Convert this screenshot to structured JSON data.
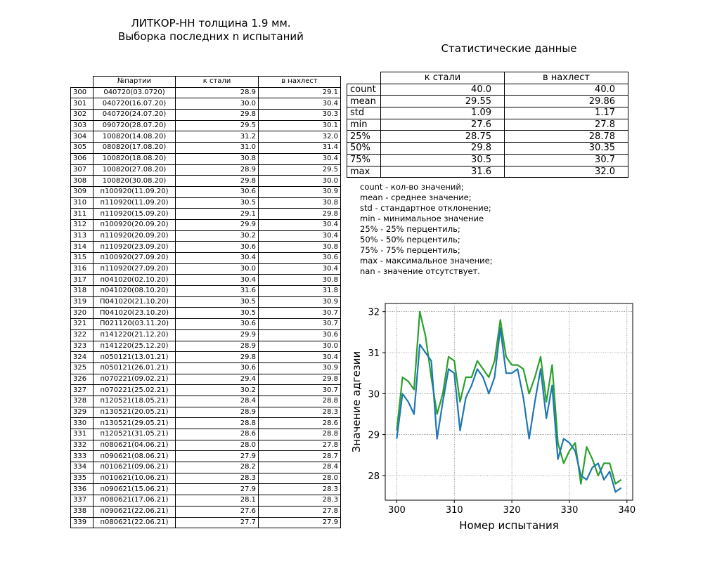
{
  "left_title": {
    "line1": "ЛИТКОР-НН толщина 1.9 мм.",
    "line2": "Выборка последних n испытаний"
  },
  "table": {
    "headers": [
      "№партии",
      "к стали",
      "в нахлест"
    ],
    "rows": [
      [
        "300",
        "040720(03.0720)",
        "28.9",
        "29.1"
      ],
      [
        "301",
        "040720(16.07.20)",
        "30.0",
        "30.4"
      ],
      [
        "302",
        "040720(24.07.20)",
        "29.8",
        "30.3"
      ],
      [
        "303",
        "090720(28.07.20)",
        "29.5",
        "30.1"
      ],
      [
        "304",
        "100820(14.08.20)",
        "31.2",
        "32.0"
      ],
      [
        "305",
        "080820(17.08.20)",
        "31.0",
        "31.4"
      ],
      [
        "306",
        "100820(18.08.20)",
        "30.8",
        "30.4"
      ],
      [
        "307",
        "100820(27.08.20)",
        "28.9",
        "29.5"
      ],
      [
        "308",
        "100820(30.08.20)",
        "29.8",
        "30.0"
      ],
      [
        "309",
        "п100920(11.09.20)",
        "30.6",
        "30.9"
      ],
      [
        "310",
        "п110920(11.09.20)",
        "30.5",
        "30.8"
      ],
      [
        "311",
        "п110920(15.09.20)",
        "29.1",
        "29.8"
      ],
      [
        "312",
        "п100920(20.09.20)",
        "29.9",
        "30.4"
      ],
      [
        "313",
        "п110920(20.09.20)",
        "30.2",
        "30.4"
      ],
      [
        "314",
        "п110920(23.09.20)",
        "30.6",
        "30.8"
      ],
      [
        "315",
        "п100920(27.09.20)",
        "30.4",
        "30.6"
      ],
      [
        "316",
        "п110920(27.09.20)",
        "30.0",
        "30.4"
      ],
      [
        "317",
        "п041020(02.10.20)",
        "30.4",
        "30.8"
      ],
      [
        "318",
        "п041020(08.10.20)",
        "31.6",
        "31.8"
      ],
      [
        "319",
        "П041020(21.10.20)",
        "30.5",
        "30.9"
      ],
      [
        "320",
        "П041020(23.10.20)",
        "30.5",
        "30.7"
      ],
      [
        "321",
        "П021120(03.11.20)",
        "30.6",
        "30.7"
      ],
      [
        "322",
        "п141220(21.12.20)",
        "29.9",
        "30.6"
      ],
      [
        "323",
        "п141220(25.12.20)",
        "28.9",
        "30.0"
      ],
      [
        "324",
        "п050121(13.01.21)",
        "29.8",
        "30.4"
      ],
      [
        "325",
        "п050121(26.01.21)",
        "30.6",
        "30.9"
      ],
      [
        "326",
        "п070221(09.02.21)",
        "29.4",
        "29.8"
      ],
      [
        "327",
        "п070221(25.02.21)",
        "30.2",
        "30.7"
      ],
      [
        "328",
        "п120521(18.05.21)",
        "28.4",
        "28.8"
      ],
      [
        "329",
        "п130521(20.05.21)",
        "28.9",
        "28.3"
      ],
      [
        "330",
        "п130521(29.05.21)",
        "28.8",
        "28.6"
      ],
      [
        "331",
        "п120521(31.05.21)",
        "28.6",
        "28.8"
      ],
      [
        "332",
        "п080621(04.06.21)",
        "28.0",
        "27.8"
      ],
      [
        "333",
        "п090621(08.06.21)",
        "27.9",
        "28.7"
      ],
      [
        "334",
        "п010621(09.06.21)",
        "28.2",
        "28.4"
      ],
      [
        "335",
        "п010621(10.06.21)",
        "28.3",
        "28.0"
      ],
      [
        "336",
        "п090621(15.06.21)",
        "27.9",
        "28.3"
      ],
      [
        "337",
        "п080621(17.06.21)",
        "28.1",
        "28.3"
      ],
      [
        "338",
        "п090621(22.06.21)",
        "27.6",
        "27.8"
      ],
      [
        "339",
        "п080621(22.06.21)",
        "27.7",
        "27.9"
      ]
    ]
  },
  "stats": {
    "title": "Статистические данные",
    "headers": [
      "к стали",
      "в нахлест"
    ],
    "rows": [
      [
        "count",
        "40.0",
        "40.0"
      ],
      [
        "mean",
        "29.55",
        "29.86"
      ],
      [
        "std",
        "1.09",
        "1.17"
      ],
      [
        "min",
        "27.6",
        "27.8"
      ],
      [
        "25%",
        "28.75",
        "28.78"
      ],
      [
        "50%",
        "29.8",
        "30.35"
      ],
      [
        "75%",
        "30.5",
        "30.7"
      ],
      [
        "max",
        "31.6",
        "32.0"
      ]
    ]
  },
  "notes": [
    "count - кол-во значений;",
    "mean - среднее значение;",
    "std - стандартное отклонение;",
    "min - минимальное значение",
    "25% - 25% перцентиль;",
    "50% - 50% перцентиль;",
    "75% - 75% перцентиль;",
    "max - максимальное значение;",
    "nan - значение отсутствует."
  ],
  "chart_data": {
    "type": "line",
    "title": "",
    "xlabel": "Номер испытания",
    "ylabel": "Значение адгезии",
    "xlim": [
      298,
      341
    ],
    "ylim": [
      27.4,
      32.2
    ],
    "xticks": [
      300,
      310,
      320,
      330,
      340
    ],
    "yticks": [
      28,
      29,
      30,
      31,
      32
    ],
    "grid": true,
    "x": [
      300,
      301,
      302,
      303,
      304,
      305,
      306,
      307,
      308,
      309,
      310,
      311,
      312,
      313,
      314,
      315,
      316,
      317,
      318,
      319,
      320,
      321,
      322,
      323,
      324,
      325,
      326,
      327,
      328,
      329,
      330,
      331,
      332,
      333,
      334,
      335,
      336,
      337,
      338,
      339
    ],
    "series": [
      {
        "color": "#1f77b4",
        "values": [
          28.9,
          30.0,
          29.8,
          29.5,
          31.2,
          31.0,
          30.8,
          28.9,
          29.8,
          30.6,
          30.5,
          29.1,
          29.9,
          30.2,
          30.6,
          30.4,
          30.0,
          30.4,
          31.6,
          30.5,
          30.5,
          30.6,
          29.9,
          28.9,
          29.8,
          30.6,
          29.4,
          30.2,
          28.4,
          28.9,
          28.8,
          28.6,
          28.0,
          27.9,
          28.2,
          28.3,
          27.9,
          28.1,
          27.6,
          27.7
        ]
      },
      {
        "color": "#2ca02c",
        "values": [
          29.1,
          30.4,
          30.3,
          30.1,
          32.0,
          31.4,
          30.4,
          29.5,
          30.0,
          30.9,
          30.8,
          29.8,
          30.4,
          30.4,
          30.8,
          30.6,
          30.4,
          30.8,
          31.8,
          30.9,
          30.7,
          30.7,
          30.6,
          30.0,
          30.4,
          30.9,
          29.8,
          30.7,
          28.8,
          28.3,
          28.6,
          28.8,
          27.8,
          28.7,
          28.4,
          28.0,
          28.3,
          28.3,
          27.8,
          27.9
        ]
      }
    ]
  }
}
